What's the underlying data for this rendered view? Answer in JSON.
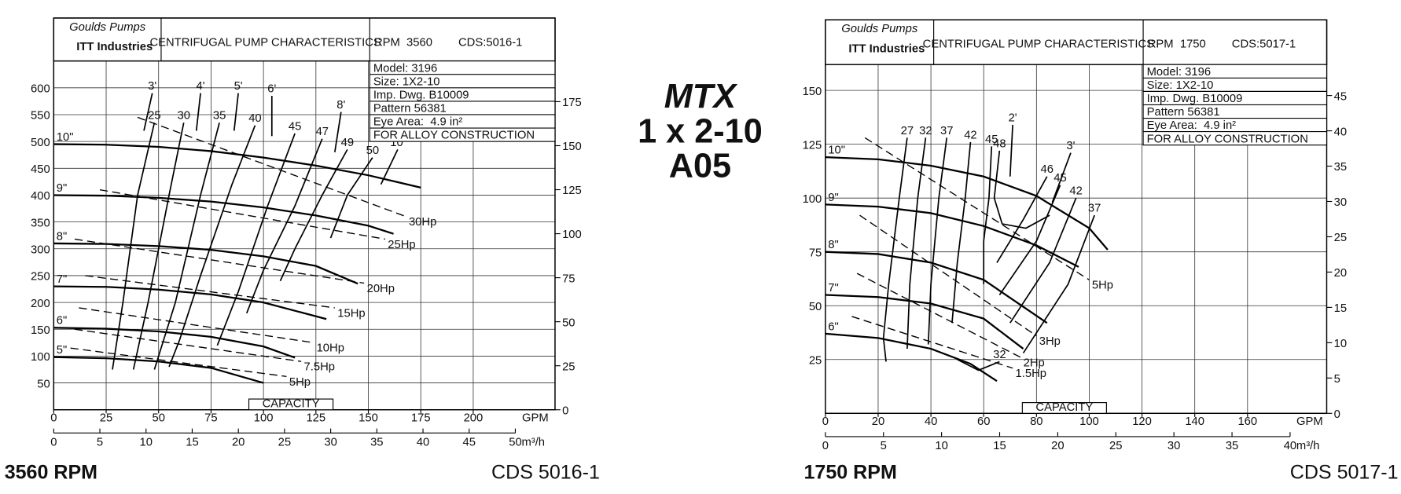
{
  "center_title": [
    "MTX",
    "1 x 2-10",
    "A05"
  ],
  "chart_data": [
    {
      "type": "line",
      "brand": [
        "Goulds Pumps",
        "ITT Industries"
      ],
      "header_title": "CENTRIFUGAL PUMP CHARACTERISTICS",
      "rpm_label": "RPM  3560",
      "cds_label": "CDS:5016-1",
      "info": [
        "Model: 3196",
        "Size: 1X2-10",
        "Imp. Dwg. B10009",
        "Pattern 56381",
        "Eye Area:  4.9 in²",
        "FOR ALLOY CONSTRUCTION"
      ],
      "x_unit": "GPM",
      "x2_unit": "m³/h",
      "capacity_label": "CAPACITY",
      "footer_left": "3560 RPM",
      "footer_right": "CDS 5016-1",
      "xlim": [
        0,
        239
      ],
      "xticks": [
        0,
        25,
        50,
        75,
        100,
        125,
        150,
        175,
        200
      ],
      "x2lim": [
        0,
        54.3
      ],
      "x2ticks": [
        0,
        5,
        10,
        15,
        20,
        25,
        30,
        35,
        40,
        45,
        50
      ],
      "ylim": [
        0,
        650
      ],
      "yticks": [
        50,
        100,
        150,
        200,
        250,
        300,
        350,
        400,
        450,
        500,
        550,
        600
      ],
      "y2lim": [
        0,
        198.1
      ],
      "y2ticks": [
        0,
        25,
        50,
        75,
        100,
        125,
        150,
        175
      ],
      "grid": true,
      "color": "#000000",
      "series": [
        {
          "name": "10\"",
          "label_at": "axis",
          "width": 2,
          "dash": false,
          "x": [
            0,
            25,
            50,
            75,
            100,
            125,
            150,
            175
          ],
          "values": [
            495,
            494,
            490,
            482,
            470,
            455,
            437,
            414
          ]
        },
        {
          "name": "9\"",
          "label_at": "axis",
          "width": 2,
          "dash": false,
          "x": [
            0,
            25,
            50,
            75,
            100,
            125,
            150,
            162
          ],
          "values": [
            400,
            399,
            395,
            388,
            377,
            362,
            343,
            328
          ]
        },
        {
          "name": "8\"",
          "label_at": "axis",
          "width": 2,
          "dash": false,
          "x": [
            0,
            25,
            50,
            75,
            100,
            125,
            145
          ],
          "values": [
            310,
            309,
            305,
            298,
            286,
            268,
            235
          ]
        },
        {
          "name": "7\"",
          "label_at": "axis",
          "width": 2,
          "dash": false,
          "x": [
            0,
            25,
            50,
            75,
            100,
            130
          ],
          "values": [
            230,
            229,
            224,
            215,
            200,
            169
          ]
        },
        {
          "name": "6\"",
          "label_at": "axis",
          "width": 2,
          "dash": false,
          "x": [
            0,
            25,
            50,
            75,
            100,
            115
          ],
          "values": [
            153,
            151,
            146,
            136,
            118,
            97
          ]
        },
        {
          "name": "5\"",
          "label_at": "axis",
          "width": 2,
          "dash": false,
          "x": [
            0,
            25,
            50,
            75,
            100
          ],
          "values": [
            98,
            96,
            90,
            78,
            50
          ]
        },
        {
          "name": "30Hp",
          "label_at": "end",
          "width": 1.2,
          "dash": true,
          "x": [
            40,
            168
          ],
          "values": [
            545,
            360
          ]
        },
        {
          "name": "25Hp",
          "label_at": "end",
          "width": 1.2,
          "dash": true,
          "x": [
            22,
            158
          ],
          "values": [
            410,
            318
          ]
        },
        {
          "name": "20Hp",
          "label_at": "end",
          "width": 1.2,
          "dash": true,
          "x": [
            10,
            148
          ],
          "values": [
            318,
            236
          ]
        },
        {
          "name": "15Hp",
          "label_at": "end",
          "width": 1.2,
          "dash": true,
          "x": [
            15,
            134
          ],
          "values": [
            250,
            190
          ]
        },
        {
          "name": "10Hp",
          "label_at": "end",
          "width": 1.2,
          "dash": true,
          "x": [
            12,
            124
          ],
          "values": [
            190,
            125
          ]
        },
        {
          "name": "7.5Hp",
          "label_at": "end",
          "width": 1.2,
          "dash": true,
          "x": [
            10,
            118
          ],
          "values": [
            150,
            90
          ]
        },
        {
          "name": "5Hp",
          "label_at": "end",
          "width": 1.2,
          "dash": true,
          "x": [
            8,
            111
          ],
          "values": [
            115,
            62
          ]
        },
        {
          "name": "25",
          "label_at": "start",
          "width": 1.5,
          "dash": false,
          "x": [
            48,
            40,
            33,
            28
          ],
          "values": [
            535,
            400,
            200,
            75
          ]
        },
        {
          "name": "30",
          "label_at": "start",
          "width": 1.5,
          "dash": false,
          "x": [
            62,
            55,
            45,
            38
          ],
          "values": [
            535,
            400,
            200,
            75
          ]
        },
        {
          "name": "35",
          "label_at": "start",
          "width": 1.5,
          "dash": false,
          "x": [
            79,
            70,
            58,
            48
          ],
          "values": [
            535,
            400,
            200,
            75
          ]
        },
        {
          "name": "40",
          "label_at": "start",
          "width": 1.5,
          "dash": false,
          "x": [
            96,
            85,
            70,
            60,
            55
          ],
          "values": [
            530,
            420,
            250,
            130,
            80
          ]
        },
        {
          "name": "45",
          "label_at": "start",
          "width": 1.5,
          "dash": false,
          "x": [
            115,
            102,
            88,
            78
          ],
          "values": [
            515,
            380,
            220,
            120
          ]
        },
        {
          "name": "47",
          "label_at": "start",
          "width": 1.5,
          "dash": false,
          "x": [
            128,
            115,
            100,
            92
          ],
          "values": [
            505,
            380,
            260,
            180
          ]
        },
        {
          "name": "49",
          "label_at": "start",
          "width": 1.5,
          "dash": false,
          "x": [
            140,
            128,
            115,
            108
          ],
          "values": [
            485,
            400,
            300,
            240
          ]
        },
        {
          "name": "50",
          "label_at": "start",
          "width": 1.5,
          "dash": false,
          "x": [
            152,
            140,
            132
          ],
          "values": [
            470,
            400,
            320
          ]
        },
        {
          "name": "3'",
          "label_at": "start",
          "width": 1.5,
          "dash": false,
          "x": [
            47,
            43
          ],
          "values": [
            590,
            520
          ]
        },
        {
          "name": "4'",
          "label_at": "start",
          "width": 1.5,
          "dash": false,
          "x": [
            70,
            68
          ],
          "values": [
            590,
            520
          ]
        },
        {
          "name": "5'",
          "label_at": "start",
          "width": 1.5,
          "dash": false,
          "x": [
            88,
            86
          ],
          "values": [
            590,
            520
          ]
        },
        {
          "name": "6'",
          "label_at": "start",
          "width": 1.5,
          "dash": false,
          "x": [
            104,
            104
          ],
          "values": [
            585,
            510
          ]
        },
        {
          "name": "8'",
          "label_at": "start",
          "width": 1.5,
          "dash": false,
          "x": [
            137,
            134
          ],
          "values": [
            555,
            480
          ]
        },
        {
          "name": "10'",
          "label_at": "start",
          "width": 1.5,
          "dash": false,
          "x": [
            164,
            156
          ],
          "values": [
            485,
            420
          ]
        }
      ]
    },
    {
      "type": "line",
      "brand": [
        "Goulds Pumps",
        "ITT Industries"
      ],
      "header_title": "CENTRIFUGAL PUMP CHARACTERISTICS",
      "rpm_label": "RPM  1750",
      "cds_label": "CDS:5017-1",
      "info": [
        "Model: 3196",
        "Size: 1X2-10",
        "Imp. Dwg. B10009",
        "Pattern 56381",
        "Eye Area:  4.9 in²",
        "FOR ALLOY CONSTRUCTION"
      ],
      "x_unit": "GPM",
      "x2_unit": "m³/h",
      "capacity_label": "CAPACITY",
      "footer_left": "1750 RPM",
      "footer_right": "CDS 5017-1",
      "xlim": [
        0,
        190
      ],
      "xticks": [
        0,
        20,
        40,
        60,
        80,
        100,
        120,
        140,
        160
      ],
      "x2lim": [
        0,
        43.15
      ],
      "x2ticks": [
        0,
        5,
        10,
        15,
        20,
        25,
        30,
        35,
        40
      ],
      "ylim": [
        0,
        162
      ],
      "yticks": [
        25,
        50,
        75,
        100,
        125,
        150
      ],
      "y2lim": [
        0,
        49.38
      ],
      "y2ticks": [
        0,
        5,
        10,
        15,
        20,
        25,
        30,
        35,
        40,
        45
      ],
      "grid": true,
      "color": "#000000",
      "series": [
        {
          "name": "10\"",
          "label_at": "axis",
          "width": 2,
          "dash": false,
          "x": [
            0,
            20,
            40,
            60,
            80,
            100,
            107
          ],
          "values": [
            119,
            118,
            115,
            110,
            101,
            86,
            76
          ]
        },
        {
          "name": "9\"",
          "label_at": "axis",
          "width": 2,
          "dash": false,
          "x": [
            0,
            20,
            40,
            60,
            80,
            96
          ],
          "values": [
            97,
            96,
            93,
            87,
            78,
            68
          ]
        },
        {
          "name": "8\"",
          "label_at": "axis",
          "width": 2,
          "dash": false,
          "x": [
            0,
            20,
            40,
            60,
            84
          ],
          "values": [
            75,
            74,
            70,
            62,
            42
          ]
        },
        {
          "name": "7\"",
          "label_at": "axis",
          "width": 2,
          "dash": false,
          "x": [
            0,
            20,
            40,
            60,
            75
          ],
          "values": [
            55,
            54,
            51,
            44,
            30
          ]
        },
        {
          "name": "6\"",
          "label_at": "axis",
          "width": 2,
          "dash": false,
          "x": [
            0,
            20,
            40,
            55,
            65
          ],
          "values": [
            37,
            35,
            30,
            23,
            15
          ]
        },
        {
          "name": "5Hp",
          "label_at": "end",
          "width": 1.2,
          "dash": true,
          "x": [
            15,
            100
          ],
          "values": [
            128,
            62
          ]
        },
        {
          "name": "3Hp",
          "label_at": "end",
          "width": 1.2,
          "dash": true,
          "x": [
            13,
            80
          ],
          "values": [
            92,
            36
          ]
        },
        {
          "name": "2Hp",
          "label_at": "end",
          "width": 1.2,
          "dash": true,
          "x": [
            12,
            74
          ],
          "values": [
            65,
            26
          ]
        },
        {
          "name": "1.5Hp",
          "label_at": "end",
          "width": 1.2,
          "dash": true,
          "x": [
            10,
            71
          ],
          "values": [
            45,
            21
          ]
        },
        {
          "name": "27",
          "label_at": "start",
          "width": 1.5,
          "dash": false,
          "x": [
            31,
            28,
            24,
            22,
            23
          ],
          "values": [
            128,
            100,
            60,
            35,
            24
          ]
        },
        {
          "name": "32",
          "label_at": "start",
          "width": 1.5,
          "dash": false,
          "x": [
            38,
            35,
            32,
            31
          ],
          "values": [
            128,
            100,
            60,
            30
          ]
        },
        {
          "name": "37",
          "label_at": "start",
          "width": 1.5,
          "dash": false,
          "x": [
            46,
            43,
            40,
            39
          ],
          "values": [
            128,
            100,
            60,
            32
          ]
        },
        {
          "name": "42",
          "label_at": "start",
          "width": 1.5,
          "dash": false,
          "x": [
            55,
            53,
            50,
            48
          ],
          "values": [
            126,
            100,
            70,
            42
          ]
        },
        {
          "name": "45",
          "label_at": "start",
          "width": 1.5,
          "dash": false,
          "x": [
            63,
            62,
            60,
            60
          ],
          "values": [
            124,
            100,
            80,
            60
          ]
        },
        {
          "name": "48",
          "label_at": "start",
          "width": 1.5,
          "dash": false,
          "x": [
            66,
            64,
            67,
            76,
            85
          ],
          "values": [
            122,
            100,
            88,
            86,
            92
          ]
        },
        {
          "name": "46",
          "label_at": "start",
          "width": 1.5,
          "dash": false,
          "x": [
            84,
            75,
            65
          ],
          "values": [
            110,
            90,
            70
          ]
        },
        {
          "name": "45",
          "label_at": "start",
          "width": 1.5,
          "dash": false,
          "x": [
            89,
            80,
            66
          ],
          "values": [
            106,
            80,
            55
          ]
        },
        {
          "name": "42",
          "label_at": "start",
          "width": 1.5,
          "dash": false,
          "x": [
            95,
            85,
            70
          ],
          "values": [
            100,
            70,
            42
          ]
        },
        {
          "name": "37",
          "label_at": "start",
          "width": 1.5,
          "dash": false,
          "x": [
            102,
            92,
            75
          ],
          "values": [
            92,
            60,
            28
          ]
        },
        {
          "name": "32",
          "label_at": "start",
          "width": 1.5,
          "dash": false,
          "x": [
            66,
            58,
            50
          ],
          "values": [
            24,
            20,
            25
          ]
        },
        {
          "name": "2'",
          "label_at": "start",
          "width": 1.5,
          "dash": false,
          "x": [
            71,
            70
          ],
          "values": [
            134,
            110
          ]
        },
        {
          "name": "3'",
          "label_at": "start",
          "width": 1.5,
          "dash": false,
          "x": [
            93,
            86
          ],
          "values": [
            121,
            98
          ]
        }
      ]
    }
  ]
}
